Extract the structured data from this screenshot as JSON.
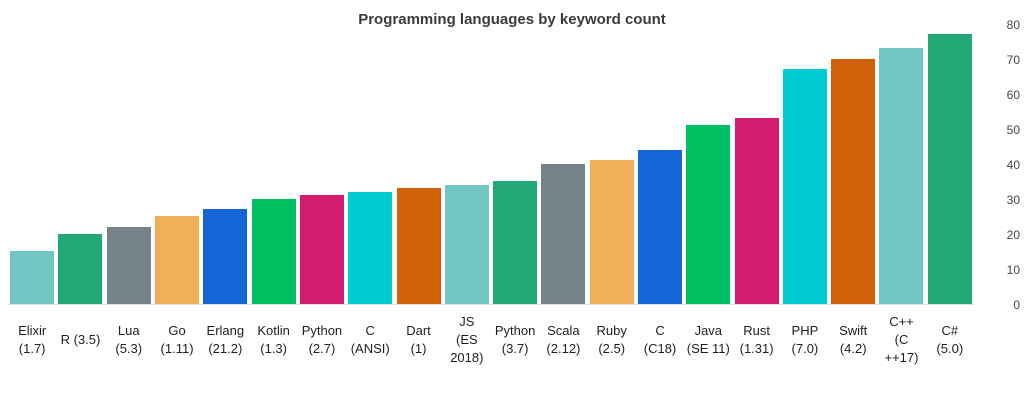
{
  "background": "#ffffff",
  "chart_data": {
    "type": "bar",
    "title": "Programming languages by keyword count",
    "categories": [
      "Elixir (1.7)",
      "R (3.5)",
      "Lua (5.3)",
      "Go (1.11)",
      "Erlang (21.2)",
      "Kotlin (1.3)",
      "Python (2.7)",
      "C (ANSI)",
      "Dart (1)",
      "JS (ES 2018)",
      "Python (3.7)",
      "Scala (2.12)",
      "Ruby (2.5)",
      "C (C18)",
      "Java (SE 11)",
      "Rust (1.31)",
      "PHP (7.0)",
      "Swift (4.2)",
      "C++ (C++17)",
      "C# (5.0)"
    ],
    "category_lines": [
      [
        "Elixir",
        "(1.7)"
      ],
      [
        "R (3.5)"
      ],
      [
        "Lua",
        "(5.3)"
      ],
      [
        "Go",
        "(1.11)"
      ],
      [
        "Erlang",
        "(21.2)"
      ],
      [
        "Kotlin",
        "(1.3)"
      ],
      [
        "Python",
        "(2.7)"
      ],
      [
        "C",
        "(ANSI)"
      ],
      [
        "Dart",
        "(1)"
      ],
      [
        "JS",
        "(ES",
        "2018)"
      ],
      [
        "Python",
        "(3.7)"
      ],
      [
        "Scala",
        "(2.12)"
      ],
      [
        "Ruby",
        "(2.5)"
      ],
      [
        "C",
        "(C18)"
      ],
      [
        "Java",
        "(SE 11)"
      ],
      [
        "Rust",
        "(1.31)"
      ],
      [
        "PHP",
        "(7.0)"
      ],
      [
        "Swift",
        "(4.2)"
      ],
      [
        "C++",
        "(C",
        "++17)"
      ],
      [
        "C#",
        "(5.0)"
      ]
    ],
    "values": [
      15,
      20,
      22,
      25,
      27,
      30,
      31,
      32,
      33,
      34,
      35,
      40,
      41,
      44,
      51,
      53,
      67,
      70,
      73,
      77
    ],
    "palette": [
      "#73c7c3",
      "#24a878",
      "#76838b",
      "#f0b05a",
      "#1565d8",
      "#00bf60",
      "#d41c6e",
      "#00ccd4",
      "#d2610a"
    ],
    "xlabel": "",
    "ylabel": "",
    "ylim": [
      0,
      80
    ],
    "yticks": [
      0,
      10,
      20,
      30,
      40,
      50,
      60,
      70,
      80
    ],
    "ytick_side": "right",
    "grid": false,
    "legend": "none"
  }
}
